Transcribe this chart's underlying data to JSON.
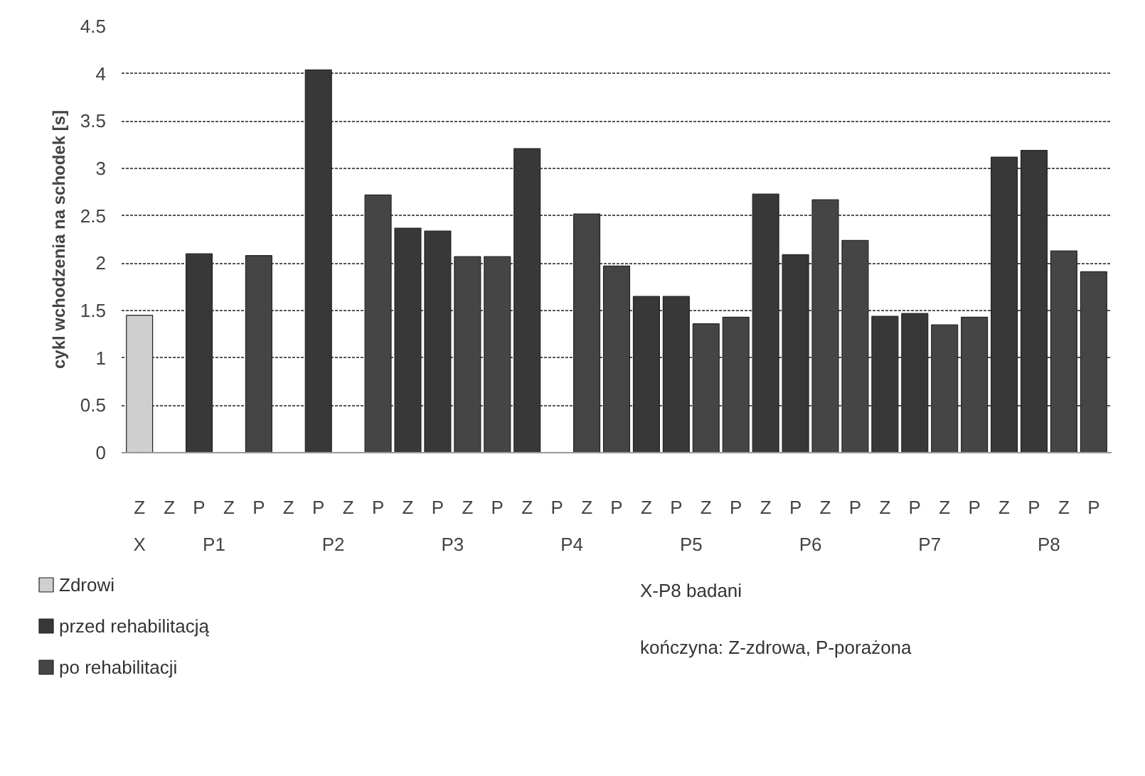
{
  "chart_data": {
    "type": "bar",
    "ylabel": "cykl wchodzenia na schodek [s]",
    "categories": [
      "Z",
      "Z",
      "P",
      "Z",
      "P",
      "Z",
      "P",
      "Z",
      "P",
      "Z",
      "P",
      "Z",
      "P",
      "Z",
      "P",
      "Z",
      "P",
      "Z",
      "P",
      "Z",
      "P",
      "Z",
      "P",
      "Z",
      "P",
      "Z",
      "P",
      "Z",
      "P",
      "Z",
      "P",
      "Z",
      "P"
    ],
    "series": [
      {
        "name": "Zdrowi",
        "color": "#cfcfcf",
        "values": [
          1.45,
          null,
          null,
          null,
          null,
          null,
          null,
          null,
          null,
          null,
          null,
          null,
          null,
          null,
          null,
          null,
          null,
          null,
          null,
          null,
          null,
          null,
          null,
          null,
          null,
          null,
          null,
          null,
          null,
          null,
          null,
          null,
          null
        ]
      },
      {
        "name": "przed rehabilitacją",
        "color": "#383838",
        "values": [
          null,
          null,
          2.1,
          null,
          null,
          null,
          4.04,
          null,
          null,
          2.37,
          2.34,
          null,
          null,
          3.21,
          null,
          null,
          null,
          1.65,
          1.65,
          null,
          null,
          2.73,
          2.09,
          null,
          null,
          1.44,
          1.47,
          null,
          null,
          3.12,
          3.19,
          null,
          null
        ]
      },
      {
        "name": "po rehabilitacji",
        "color": "#454545",
        "values": [
          null,
          null,
          null,
          null,
          2.08,
          null,
          null,
          null,
          2.72,
          null,
          null,
          2.07,
          2.07,
          null,
          null,
          2.52,
          1.97,
          null,
          null,
          1.36,
          1.43,
          null,
          null,
          2.67,
          2.24,
          null,
          null,
          1.35,
          1.43,
          null,
          null,
          2.13,
          1.91
        ]
      }
    ],
    "ylim": [
      0,
      4.5
    ],
    "yticks": [
      0,
      0.5,
      1,
      1.5,
      2,
      2.5,
      3,
      3.5,
      4,
      4.5
    ],
    "grid": "y",
    "legend": "bottom left",
    "annotations": [
      "X",
      "P1",
      "P2",
      "P3",
      "P4",
      "P5",
      "P6",
      "P7",
      "P8",
      "X-P8 badani",
      "kończyna: Z-zdrowa, P-porażona"
    ]
  }
}
